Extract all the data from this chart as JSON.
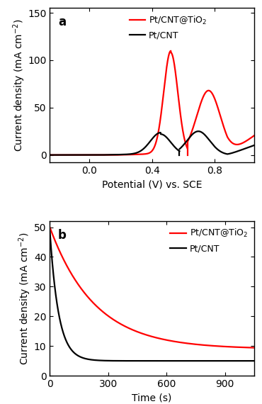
{
  "panel_a": {
    "label": "a",
    "xlabel": "Potential (V) vs. SCE",
    "ylabel": "Current density (mA cm$^{-2}$)",
    "xlim": [
      -0.25,
      1.05
    ],
    "ylim": [
      -8,
      155
    ],
    "yticks": [
      0,
      50,
      100,
      150
    ],
    "xticks": [
      0.0,
      0.4,
      0.8
    ],
    "red_label": "Pt/CNT@TiO$_2$",
    "black_label": "Pt/CNT",
    "red_fwd_peak_x": 0.52,
    "red_fwd_peak_y": 108,
    "red_fwd_sigma": 0.045,
    "red_bwd_peak_x": 0.76,
    "red_bwd_peak_y": 68,
    "red_bwd_sigma": 0.075,
    "red_tail_start": 0.9,
    "red_tail_end": 28,
    "blk_fwd_peak_x": 0.455,
    "blk_fwd_peak_y": 22,
    "blk_fwd_sigma": 0.065,
    "blk_bwd_peak_x": 0.695,
    "blk_bwd_peak_y": 25,
    "blk_bwd_sigma": 0.072,
    "blk_tail_end": 12
  },
  "panel_b": {
    "label": "b",
    "xlabel": "Time (s)",
    "ylabel": "Current density (mA cm$^{-2}$)",
    "xlim": [
      0,
      1050
    ],
    "ylim": [
      0,
      52
    ],
    "yticks": [
      0,
      10,
      20,
      30,
      40,
      50
    ],
    "xticks": [
      0,
      300,
      600,
      900
    ],
    "red_label": "Pt/CNT@TiO$_2$",
    "black_label": "Pt/CNT",
    "red_A": 41,
    "red_tau": 230,
    "red_C": 9,
    "black_A": 44,
    "black_tau": 45,
    "black_C": 5
  },
  "colors": {
    "red": "#ff0000",
    "black": "#000000"
  },
  "linewidth": 1.6,
  "figsize": [
    3.7,
    5.7
  ],
  "dpi": 100
}
